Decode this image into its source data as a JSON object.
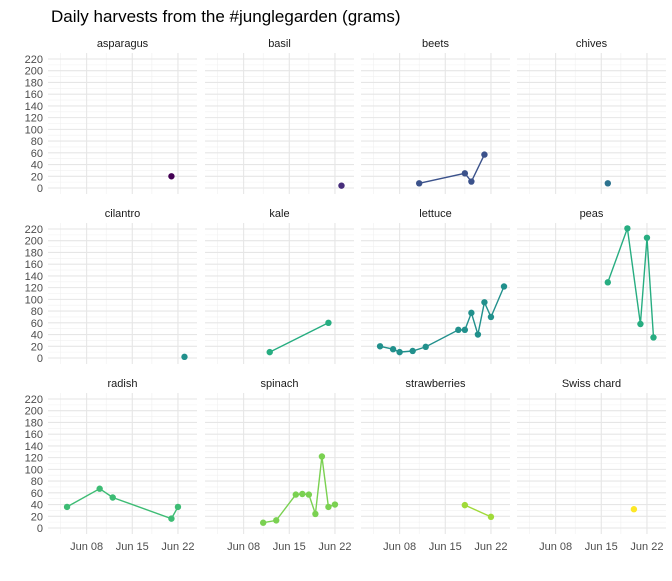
{
  "chart_data": {
    "type": "line",
    "title": "Daily harvests from the #junglegarden (grams)",
    "xlabel": "",
    "ylabel": "",
    "ylim": [
      0,
      220
    ],
    "y_ticks": [
      0,
      20,
      40,
      60,
      80,
      100,
      120,
      140,
      160,
      180,
      200,
      220
    ],
    "x_range": [
      "2020-06-03",
      "2020-06-24"
    ],
    "x_ticks": [
      {
        "date": "2020-06-08",
        "label": "Jun 08"
      },
      {
        "date": "2020-06-15",
        "label": "Jun 15"
      },
      {
        "date": "2020-06-22",
        "label": "Jun 22"
      }
    ],
    "grid": true,
    "legend": "none",
    "facets": [
      {
        "name": "asparagus",
        "color": "#440154",
        "points": [
          {
            "x": "2020-06-21",
            "y": 20
          }
        ]
      },
      {
        "name": "basil",
        "color": "#472d7b",
        "points": [
          {
            "x": "2020-06-23",
            "y": 4
          }
        ]
      },
      {
        "name": "beets",
        "color": "#3b528b",
        "points": [
          {
            "x": "2020-06-11",
            "y": 8
          },
          {
            "x": "2020-06-18",
            "y": 25
          },
          {
            "x": "2020-06-19",
            "y": 11
          },
          {
            "x": "2020-06-21",
            "y": 57
          }
        ]
      },
      {
        "name": "chives",
        "color": "#2c728e",
        "points": [
          {
            "x": "2020-06-16",
            "y": 8
          }
        ]
      },
      {
        "name": "cilantro",
        "color": "#21908c",
        "points": [
          {
            "x": "2020-06-23",
            "y": 2
          }
        ]
      },
      {
        "name": "kale",
        "color": "#27ad81",
        "points": [
          {
            "x": "2020-06-12",
            "y": 10
          },
          {
            "x": "2020-06-21",
            "y": 60
          }
        ]
      },
      {
        "name": "lettuce",
        "color": "#21908c",
        "points": [
          {
            "x": "2020-06-05",
            "y": 20
          },
          {
            "x": "2020-06-07",
            "y": 15
          },
          {
            "x": "2020-06-08",
            "y": 10
          },
          {
            "x": "2020-06-10",
            "y": 12
          },
          {
            "x": "2020-06-12",
            "y": 19
          },
          {
            "x": "2020-06-17",
            "y": 48
          },
          {
            "x": "2020-06-18",
            "y": 48
          },
          {
            "x": "2020-06-19",
            "y": 77
          },
          {
            "x": "2020-06-20",
            "y": 40
          },
          {
            "x": "2020-06-21",
            "y": 95
          },
          {
            "x": "2020-06-22",
            "y": 70
          },
          {
            "x": "2020-06-24",
            "y": 122
          }
        ]
      },
      {
        "name": "peas",
        "color": "#27ad81",
        "points": [
          {
            "x": "2020-06-16",
            "y": 129
          },
          {
            "x": "2020-06-19",
            "y": 221
          },
          {
            "x": "2020-06-21",
            "y": 58
          },
          {
            "x": "2020-06-22",
            "y": 205
          },
          {
            "x": "2020-06-23",
            "y": 35
          }
        ]
      },
      {
        "name": "radish",
        "color": "#3dbc74",
        "points": [
          {
            "x": "2020-06-05",
            "y": 36
          },
          {
            "x": "2020-06-10",
            "y": 67
          },
          {
            "x": "2020-06-12",
            "y": 52
          },
          {
            "x": "2020-06-21",
            "y": 16
          },
          {
            "x": "2020-06-22",
            "y": 36
          }
        ]
      },
      {
        "name": "spinach",
        "color": "#7ad151",
        "points": [
          {
            "x": "2020-06-11",
            "y": 9
          },
          {
            "x": "2020-06-13",
            "y": 13
          },
          {
            "x": "2020-06-16",
            "y": 57
          },
          {
            "x": "2020-06-17",
            "y": 58
          },
          {
            "x": "2020-06-18",
            "y": 57
          },
          {
            "x": "2020-06-19",
            "y": 24
          },
          {
            "x": "2020-06-20",
            "y": 122
          },
          {
            "x": "2020-06-21",
            "y": 36
          },
          {
            "x": "2020-06-22",
            "y": 40
          }
        ]
      },
      {
        "name": "strawberries",
        "color": "#a0da39",
        "points": [
          {
            "x": "2020-06-18",
            "y": 39
          },
          {
            "x": "2020-06-22",
            "y": 19
          }
        ]
      },
      {
        "name": "Swiss chard",
        "color": "#fde725",
        "points": [
          {
            "x": "2020-06-20",
            "y": 32
          }
        ]
      }
    ]
  }
}
